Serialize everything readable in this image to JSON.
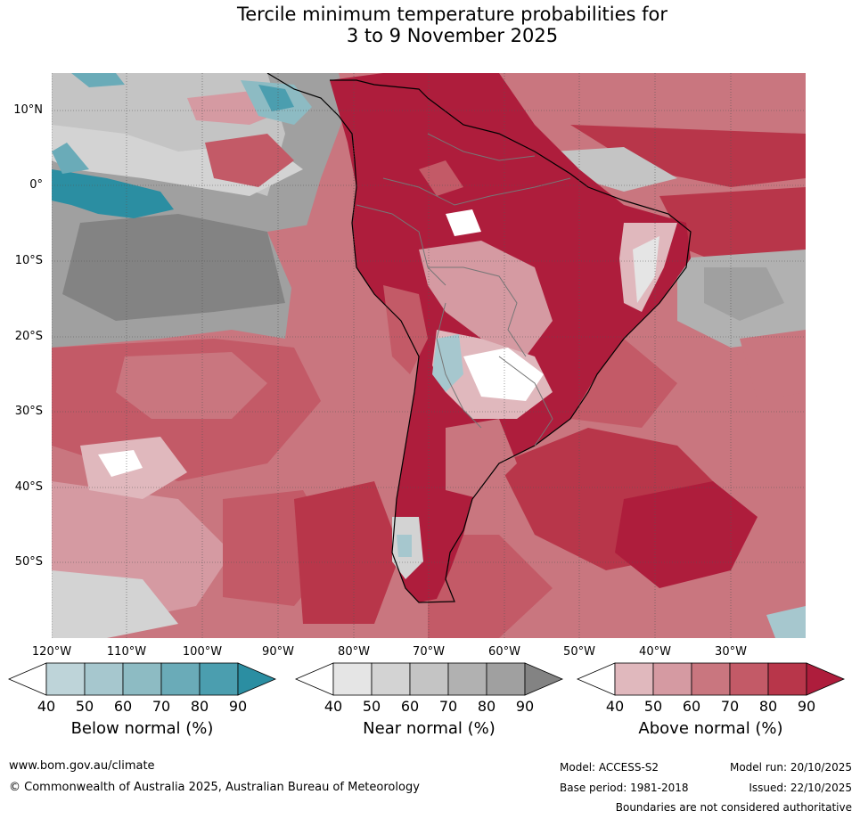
{
  "title": {
    "line1": "Tercile minimum temperature probabilities for",
    "line2": "3 to 9 November 2025"
  },
  "map": {
    "region": "South America and adjacent oceans",
    "lat_labels": [
      "10°N",
      "0°",
      "10°S",
      "20°S",
      "30°S",
      "40°S",
      "50°S"
    ],
    "lon_labels": [
      "120°W",
      "110°W",
      "100°W",
      "90°W",
      "80°W",
      "70°W",
      "60°W",
      "50°W",
      "40°W",
      "30°W"
    ],
    "colors": {
      "above": [
        "#e0b8bd",
        "#d59aa2",
        "#c9767f",
        "#c35a67",
        "#b8364a",
        "#ae1d3c"
      ],
      "near": [
        "#e5e5e5",
        "#d3d3d3",
        "#c4c4c4",
        "#b1b1b1",
        "#a0a0a0",
        "#838383"
      ],
      "below": [
        "#bed4d9",
        "#a6c7ce",
        "#8dbbc3",
        "#6aabb8",
        "#4b9eaf",
        "#2b8ea2"
      ]
    }
  },
  "legends": [
    {
      "id": "below",
      "title": "Below normal (%)",
      "ticks": [
        "40",
        "50",
        "60",
        "70",
        "80",
        "90"
      ]
    },
    {
      "id": "near",
      "title": "Near normal (%)",
      "ticks": [
        "40",
        "50",
        "60",
        "70",
        "80",
        "90"
      ]
    },
    {
      "id": "above",
      "title": "Above normal (%)",
      "ticks": [
        "40",
        "50",
        "60",
        "70",
        "80",
        "90"
      ]
    }
  ],
  "footer": {
    "url": "www.bom.gov.au/climate",
    "copyright": "© Commonwealth of Australia 2025, Australian Bureau of Meteorology",
    "model": "Model: ACCESS-S2",
    "base_period": "Base period: 1981-2018",
    "model_run": "Model run: 20/10/2025",
    "issued": "Issued: 22/10/2025",
    "disclaimer": "Boundaries are not considered authoritative"
  }
}
